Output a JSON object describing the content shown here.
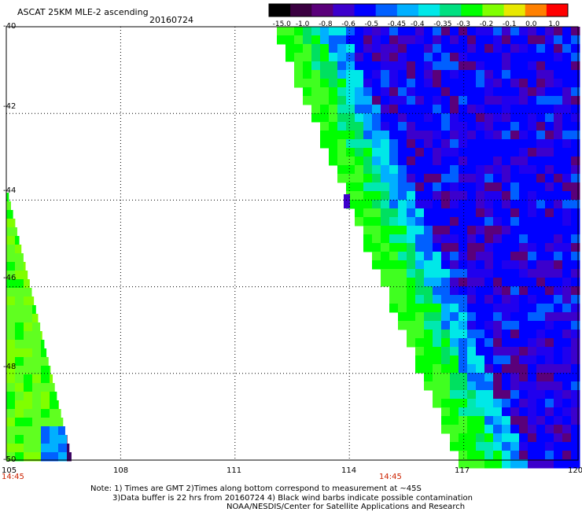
{
  "header": {
    "title": "ASCAT 25KM MLE-2 ascending",
    "date": "20160724"
  },
  "colorbar": {
    "labels": [
      "-15.0",
      "-1.0",
      "-0.8",
      "-0.6",
      "-0.5",
      "-0.45",
      "-0.4",
      "-0.35",
      "-0.3",
      "-0.2",
      "-0.1",
      "0.0",
      "1.0"
    ],
    "colors": [
      "#000000",
      "#3a0040",
      "#5a007a",
      "#3c00cc",
      "#0000ff",
      "#0060ff",
      "#00b0ff",
      "#00e8e8",
      "#00e080",
      "#00ff00",
      "#80ff00",
      "#e8e800",
      "#ff8000",
      "#ff0000"
    ]
  },
  "axes": {
    "x_ticks": [
      "105",
      "108",
      "111",
      "114",
      "117",
      "120"
    ],
    "y_ticks": [
      "-40",
      "-42",
      "-44",
      "-46",
      "-48",
      "-50"
    ],
    "lon_range": [
      105,
      120
    ],
    "lat_range": [
      -50,
      -40
    ]
  },
  "times": [
    {
      "label": "14:45",
      "lon": 105
    },
    {
      "label": "14:45",
      "lon": 114.5
    }
  ],
  "notes": [
    "Note: 1) Times are GMT 2)Times along bottom correspond to measurement at ~45S",
    "3)Data buffer is 22 hrs from 20160724 4) Black wind barbs indicate possible contamination",
    "NOAA/NESDIS/Center for Satellite Applications and Research"
  ]
}
